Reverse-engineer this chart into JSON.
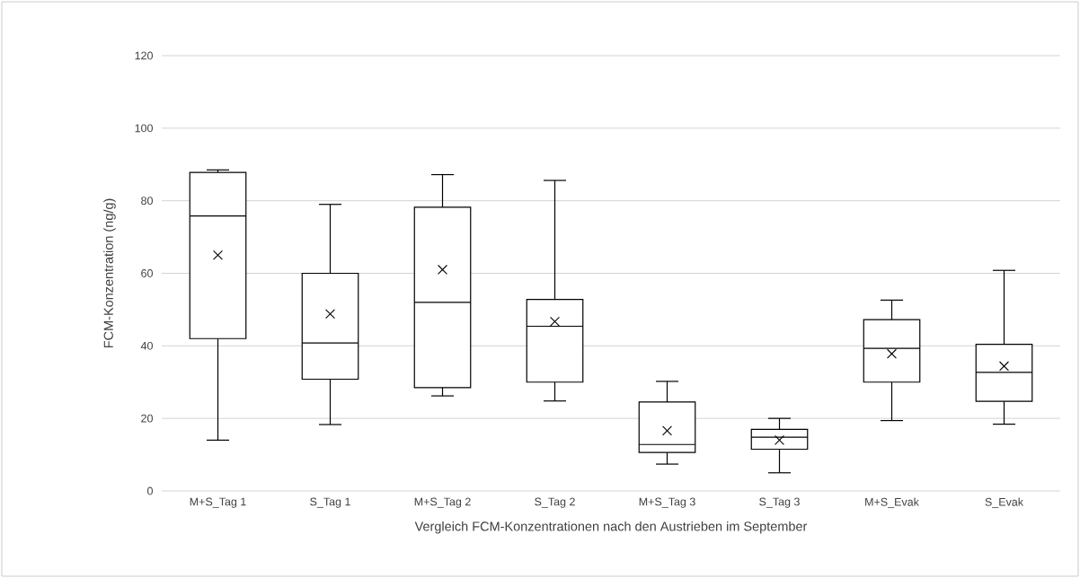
{
  "chart_data": {
    "type": "box",
    "xlabel": "Vergleich FCM-Konzentrationen nach den Austrieben im September",
    "ylabel": "FCM-Konzentration (ng/g)",
    "categories": [
      "M+S_Tag 1",
      "S_Tag 1",
      "M+S_Tag 2",
      "S_Tag 2",
      "M+S_Tag 3",
      "S_Tag 3",
      "M+S_Evak",
      "S_Evak"
    ],
    "boxes": [
      {
        "low": 14,
        "q1": 42,
        "median": 75.8,
        "q3": 87.8,
        "high": 88.5,
        "mean": 65
      },
      {
        "low": 18.3,
        "q1": 30.8,
        "median": 40.8,
        "q3": 60,
        "high": 79,
        "mean": 48.8
      },
      {
        "low": 26.2,
        "q1": 28.5,
        "median": 52,
        "q3": 78.2,
        "high": 87.2,
        "mean": 61
      },
      {
        "low": 24.8,
        "q1": 30,
        "median": 45.4,
        "q3": 52.8,
        "high": 85.6,
        "mean": 46.7
      },
      {
        "low": 7.4,
        "q1": 10.6,
        "median": 12.8,
        "q3": 24.5,
        "high": 30.2,
        "mean": 16.6
      },
      {
        "low": 5,
        "q1": 11.5,
        "median": 14.8,
        "q3": 17,
        "high": 20,
        "mean": 14
      },
      {
        "low": 19.4,
        "q1": 30,
        "median": 39.3,
        "q3": 47.2,
        "high": 52.6,
        "mean": 37.8
      },
      {
        "low": 18.4,
        "q1": 24.7,
        "median": 32.7,
        "q3": 40.4,
        "high": 60.8,
        "mean": 34.4
      }
    ],
    "ylim": [
      0,
      120
    ],
    "yticks": [
      0,
      20,
      40,
      60,
      80,
      100,
      120
    ],
    "grid": "y"
  }
}
